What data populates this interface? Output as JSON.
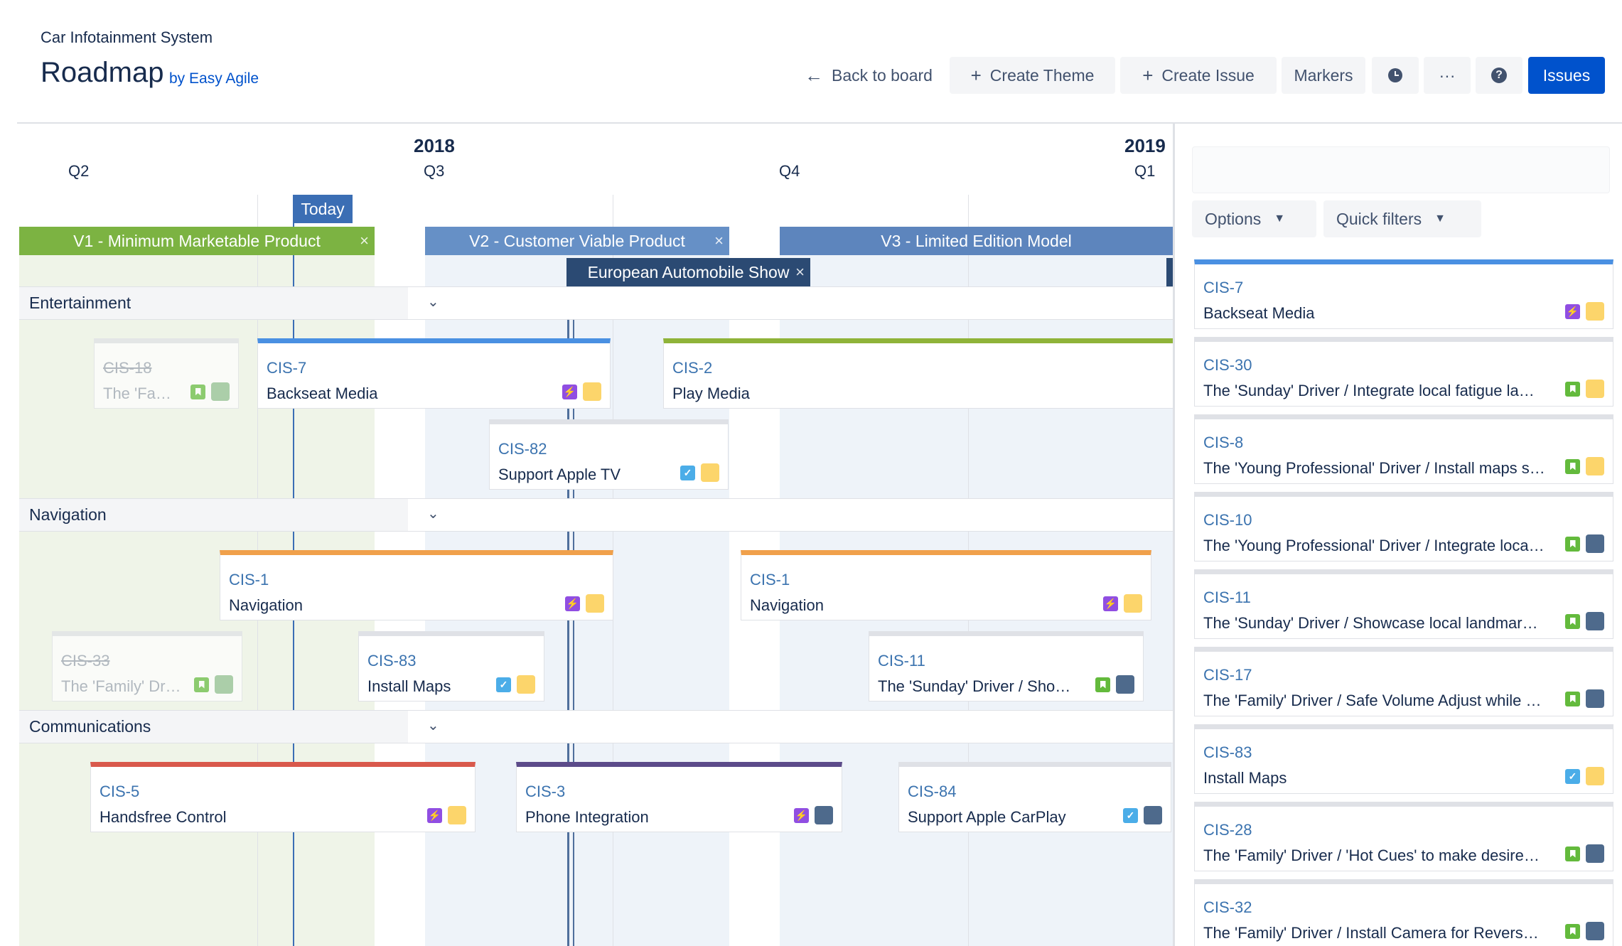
{
  "header": {
    "project_name": "Car Infotainment System",
    "title": "Roadmap",
    "by_line": "by Easy Agile",
    "back_label": "Back to board",
    "create_theme_label": "Create Theme",
    "create_issue_label": "Create Issue",
    "markers_label": "Markers",
    "more_label": "···",
    "issues_label": "Issues"
  },
  "timeline": {
    "years": [
      "2018",
      "2019"
    ],
    "quarters": [
      "Q2",
      "Q3",
      "Q4",
      "Q1"
    ],
    "today_label": "Today",
    "versions": [
      {
        "label": "V1 - Minimum Marketable Product",
        "close": "×"
      },
      {
        "label": "V2 - Customer Viable Product",
        "close": "×"
      },
      {
        "label": "V3 - Limited Edition Model"
      }
    ],
    "markers": [
      {
        "label": "European Automobile Show",
        "close": "×"
      }
    ],
    "colors": {
      "v1": "#7cb342",
      "v2": "#6690c6",
      "v3": "#5d85bd",
      "marker": "#2b4a73",
      "today": "#3b6eb4",
      "status_yellow": "#fcd56b",
      "status_gray_green": "#8fbf8f",
      "status_dark": "#4e6a8c"
    }
  },
  "lanes": [
    {
      "name": "Entertainment",
      "cards": [
        {
          "key": "CIS-18",
          "summary": "The 'Fa…",
          "type": "story-icon",
          "status": "status_gray_green",
          "done": true
        },
        {
          "key": "CIS-7",
          "summary": "Backseat Media",
          "type": "epic-icon",
          "status": "status_yellow",
          "color": "#4a90e2"
        },
        {
          "key": "CIS-2",
          "summary": "Play Media",
          "color": "#8fb339"
        },
        {
          "key": "CIS-82",
          "summary": "Support Apple TV",
          "type": "task-icon",
          "status": "status_yellow"
        }
      ]
    },
    {
      "name": "Navigation",
      "cards": [
        {
          "key": "CIS-1",
          "summary": "Navigation",
          "type": "epic-icon",
          "status": "status_yellow",
          "color": "#f0a04b"
        },
        {
          "key": "CIS-1",
          "summary": "Navigation",
          "type": "epic-icon",
          "status": "status_yellow",
          "color": "#f0a04b"
        },
        {
          "key": "CIS-33",
          "summary": "The 'Family' Dr…",
          "type": "story-icon",
          "status": "status_gray_green",
          "done": true
        },
        {
          "key": "CIS-83",
          "summary": "Install Maps",
          "type": "task-icon",
          "status": "status_yellow"
        },
        {
          "key": "CIS-11",
          "summary": "The 'Sunday' Driver / Sho…",
          "type": "story-icon",
          "status": "status_dark"
        }
      ]
    },
    {
      "name": "Communications",
      "cards": [
        {
          "key": "CIS-5",
          "summary": "Handsfree Control",
          "type": "epic-icon",
          "status": "status_yellow",
          "color": "#d9594c"
        },
        {
          "key": "CIS-3",
          "summary": "Phone Integration",
          "type": "epic-icon",
          "status": "status_dark",
          "color": "#5c4b8a"
        },
        {
          "key": "CIS-84",
          "summary": "Support Apple CarPlay",
          "type": "task-icon",
          "status": "status_dark"
        }
      ]
    }
  ],
  "panel": {
    "options_label": "Options",
    "quick_filters_label": "Quick filters",
    "issues": [
      {
        "key": "CIS-7",
        "summary": "Backseat Media",
        "type": "epic-icon",
        "status": "status_yellow",
        "accent": "#4a90e2"
      },
      {
        "key": "CIS-30",
        "summary": "The 'Sunday' Driver / Integrate local fatigue la…",
        "type": "story-icon",
        "status": "status_yellow"
      },
      {
        "key": "CIS-8",
        "summary": "The 'Young Professional' Driver / Install maps s…",
        "type": "story-icon",
        "status": "status_yellow"
      },
      {
        "key": "CIS-10",
        "summary": "The 'Young Professional' Driver / Integrate loca…",
        "type": "story-icon",
        "status": "status_dark"
      },
      {
        "key": "CIS-11",
        "summary": "The 'Sunday' Driver / Showcase local landmar…",
        "type": "story-icon",
        "status": "status_dark"
      },
      {
        "key": "CIS-17",
        "summary": "The 'Family' Driver / Safe Volume Adjust while …",
        "type": "story-icon",
        "status": "status_dark"
      },
      {
        "key": "CIS-83",
        "summary": "Install Maps",
        "type": "task-icon",
        "status": "status_yellow"
      },
      {
        "key": "CIS-28",
        "summary": "The 'Family' Driver / 'Hot Cues' to make desire…",
        "type": "story-icon",
        "status": "status_dark"
      },
      {
        "key": "CIS-32",
        "summary": "The 'Family' Driver / Install Camera for Revers…",
        "type": "story-icon",
        "status": "status_dark"
      }
    ]
  }
}
